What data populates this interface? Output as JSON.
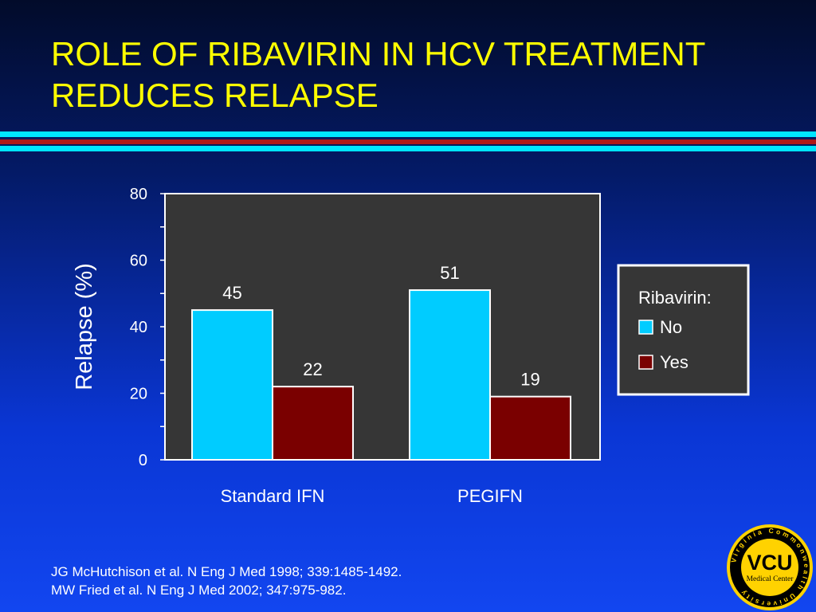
{
  "slide": {
    "title_line1": "ROLE OF RIBAVIRIN IN HCV TREATMENT",
    "title_line2": "REDUCES RELAPSE",
    "references": [
      "JG McHutchison et al.  N Eng J Med 1998; 339:1485-1492.",
      "MW Fried et al.  N Eng J Med 2002; 347:975-982."
    ],
    "logo_text": "VCU",
    "logo_subtext": "Medical Center",
    "logo_ring_text": "Virginia Commonwealth University",
    "stripe_colors": [
      "#00e5ff",
      "#b01818",
      "#00e5ff"
    ]
  },
  "chart_data": {
    "type": "bar",
    "title": "",
    "xlabel": "",
    "ylabel": "Relapse (%)",
    "ylim": [
      0,
      80
    ],
    "yticks": [
      0,
      20,
      40,
      60,
      80
    ],
    "categories": [
      "Standard IFN",
      "PEGIFN"
    ],
    "legend_title": "Ribavirin:",
    "legend_position": "right",
    "grid": false,
    "plot_background": "#363636",
    "series": [
      {
        "name": "No",
        "values": [
          45,
          51
        ],
        "color": "#00ccff"
      },
      {
        "name": "Yes",
        "values": [
          22,
          19
        ],
        "color": "#7a0000"
      }
    ]
  }
}
